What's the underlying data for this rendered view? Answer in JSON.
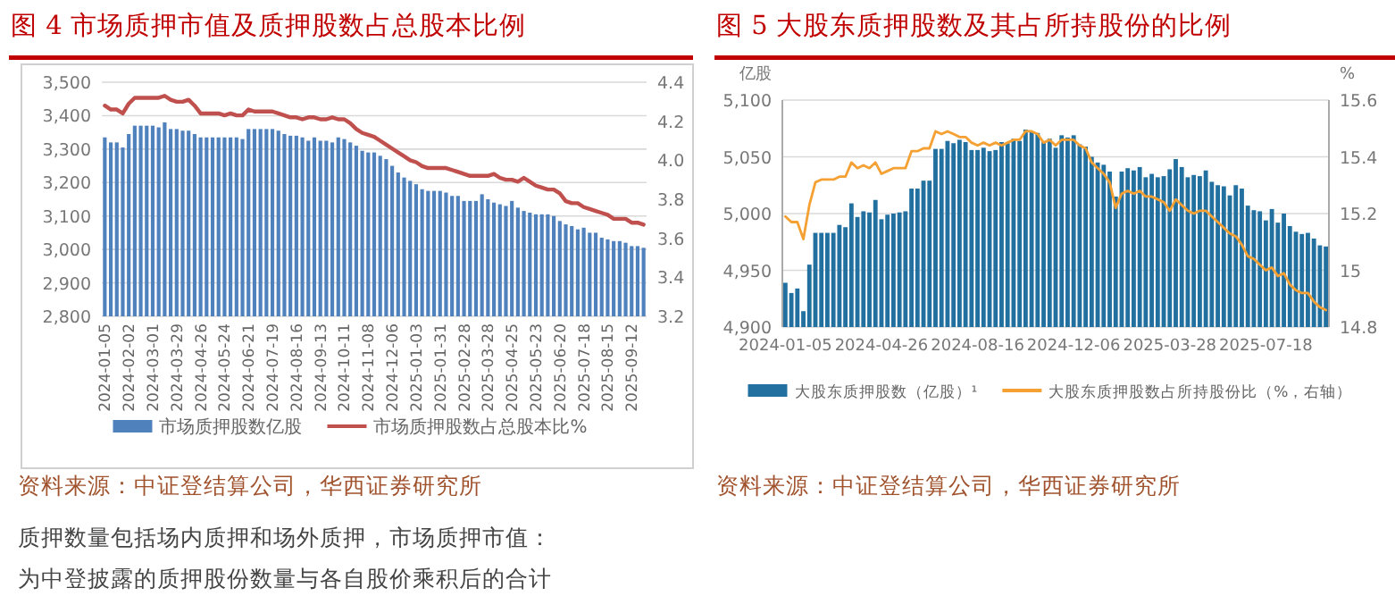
{
  "chart_data": [
    {
      "type": "bar",
      "title": "图 4   市场质押市值及质押股数占总股本比例",
      "categories": [
        "2024-01-05",
        null,
        null,
        null,
        "2024-02-02",
        null,
        null,
        null,
        "2024-03-01",
        null,
        null,
        null,
        "2024-03-29",
        null,
        null,
        null,
        "2024-04-26",
        null,
        null,
        null,
        "2024-05-24",
        null,
        null,
        null,
        "2024-06-21",
        null,
        null,
        null,
        "2024-07-19",
        null,
        null,
        null,
        "2024-08-16",
        null,
        null,
        null,
        "2024-09-13",
        null,
        null,
        null,
        "2024-10-11",
        null,
        null,
        null,
        "2024-11-08",
        null,
        null,
        null,
        "2024-12-06",
        null,
        null,
        null,
        "2025-01-03",
        null,
        null,
        null,
        "2025-01-31",
        null,
        null,
        null,
        "2025-02-28",
        null,
        null,
        null,
        "2025-03-28",
        null,
        null,
        null,
        "2025-04-25",
        null,
        null,
        null,
        "2025-05-23",
        null,
        null,
        null,
        "2025-06-20",
        null,
        null,
        null,
        "2025-07-18",
        null,
        null,
        null,
        "2025-08-15",
        null,
        null,
        null,
        "2025-09-12",
        null,
        null
      ],
      "series": [
        {
          "name": "市场质押股数亿股",
          "color": "#4f81bd",
          "values": [
            3335,
            3320,
            3320,
            3305,
            3345,
            3370,
            3370,
            3370,
            3370,
            3365,
            3380,
            3360,
            3360,
            3355,
            3355,
            3345,
            3335,
            3335,
            3335,
            3335,
            3335,
            3335,
            3335,
            3330,
            3360,
            3360,
            3360,
            3360,
            3360,
            3355,
            3345,
            3340,
            3340,
            3335,
            3325,
            3335,
            3325,
            3325,
            3320,
            3335,
            3330,
            3320,
            3310,
            3295,
            3290,
            3290,
            3280,
            3270,
            3250,
            3230,
            3215,
            3205,
            3195,
            3180,
            3175,
            3175,
            3175,
            3170,
            3160,
            3160,
            3145,
            3145,
            3145,
            3165,
            3150,
            3140,
            3135,
            3130,
            3145,
            3125,
            3115,
            3110,
            3105,
            3105,
            3105,
            3100,
            3085,
            3075,
            3070,
            3060,
            3065,
            3050,
            3050,
            3035,
            3030,
            3025,
            3025,
            3020,
            3010,
            3010,
            3005
          ]
        },
        {
          "name": "市场质押股数占总股本比%",
          "type": "line",
          "axis": "y2",
          "color": "#c0504d",
          "values": [
            4.28,
            4.26,
            4.26,
            4.24,
            4.29,
            4.32,
            4.32,
            4.32,
            4.32,
            4.32,
            4.33,
            4.31,
            4.3,
            4.3,
            4.31,
            4.28,
            4.24,
            4.24,
            4.24,
            4.24,
            4.23,
            4.24,
            4.23,
            4.23,
            4.26,
            4.25,
            4.25,
            4.25,
            4.25,
            4.24,
            4.23,
            4.22,
            4.22,
            4.21,
            4.22,
            4.22,
            4.21,
            4.21,
            4.22,
            4.21,
            4.21,
            4.19,
            4.16,
            4.14,
            4.13,
            4.12,
            4.1,
            4.08,
            4.06,
            4.04,
            4.02,
            4.0,
            3.99,
            3.97,
            3.96,
            3.96,
            3.96,
            3.96,
            3.95,
            3.94,
            3.93,
            3.92,
            3.92,
            3.92,
            3.92,
            3.93,
            3.91,
            3.9,
            3.9,
            3.89,
            3.91,
            3.89,
            3.87,
            3.86,
            3.85,
            3.85,
            3.83,
            3.79,
            3.78,
            3.78,
            3.76,
            3.75,
            3.74,
            3.73,
            3.72,
            3.7,
            3.7,
            3.7,
            3.68,
            3.68,
            3.67
          ]
        }
      ],
      "ylim": [
        2800,
        3500
      ],
      "yticks": [
        {
          "value": 2800,
          "label": "2,800"
        },
        {
          "value": 2900,
          "label": "2,900"
        },
        {
          "value": 3000,
          "label": "3,000"
        },
        {
          "value": 3100,
          "label": "3,100"
        },
        {
          "value": 3200,
          "label": "3,200"
        },
        {
          "value": 3300,
          "label": "3,300"
        },
        {
          "value": 3400,
          "label": "3,400"
        },
        {
          "value": 3500,
          "label": "3,500"
        }
      ],
      "y2lim": [
        3.2,
        4.4
      ],
      "y2ticks": [
        {
          "value": 3.2,
          "label": "3.2"
        },
        {
          "value": 3.4,
          "label": "3.4"
        },
        {
          "value": 3.6,
          "label": "3.6"
        },
        {
          "value": 3.8,
          "label": "3.8"
        },
        {
          "value": 4.0,
          "label": "4.0"
        },
        {
          "value": 4.2,
          "label": "4.2"
        },
        {
          "value": 4.4,
          "label": "4.4"
        }
      ],
      "grid": "y",
      "legend": "bottom",
      "annotations": [
        "资料来源：中证登结算公司，华西证券研究所",
        "质押数量包括场内质押和场外质押，市场质押市值：",
        "为中登披露的质押股份数量与各自股价乘积后的合计"
      ]
    },
    {
      "type": "bar",
      "title": "图 5   大股东质押股数及其占所持股份的比例",
      "ylabel": "亿股",
      "y2label": "%",
      "categories": [
        "2024-01-05",
        null,
        null,
        null,
        null,
        null,
        null,
        null,
        null,
        null,
        null,
        null,
        null,
        null,
        null,
        null,
        "2024-04-26",
        null,
        null,
        null,
        null,
        null,
        null,
        null,
        null,
        null,
        null,
        null,
        null,
        null,
        null,
        null,
        "2024-08-16",
        null,
        null,
        null,
        null,
        null,
        null,
        null,
        null,
        null,
        null,
        null,
        null,
        null,
        null,
        null,
        "2024-12-06",
        null,
        null,
        null,
        null,
        null,
        null,
        null,
        null,
        null,
        null,
        null,
        null,
        null,
        null,
        null,
        "2025-03-28",
        null,
        null,
        null,
        null,
        null,
        null,
        null,
        null,
        null,
        null,
        null,
        null,
        null,
        null,
        null,
        "2025-07-18",
        null,
        null,
        null,
        null,
        null,
        null,
        null,
        null,
        null,
        null
      ],
      "series": [
        {
          "name": "大股东质押股数（亿股）¹",
          "color": "#21709f",
          "values": [
            4939,
            4930,
            4934,
            4914,
            4955,
            4983,
            4983,
            4983,
            4983,
            4990,
            4988,
            5009,
            4997,
            5002,
            5001,
            5012,
            4995,
            4999,
            5000,
            5001,
            5002,
            5022,
            5022,
            5029,
            5029,
            5057,
            5057,
            5064,
            5062,
            5065,
            5063,
            5056,
            5056,
            5058,
            5055,
            5056,
            5063,
            5062,
            5066,
            5064,
            5074,
            5072,
            5071,
            5063,
            5066,
            5058,
            5069,
            5067,
            5069,
            5061,
            5059,
            5050,
            5045,
            5043,
            5037,
            5015,
            5037,
            5040,
            5038,
            5041,
            5032,
            5035,
            5032,
            5033,
            5039,
            5048,
            5041,
            5032,
            5034,
            5033,
            5038,
            5028,
            5025,
            5024,
            5016,
            5025,
            5022,
            5007,
            5003,
            5002,
            4994,
            5004,
            4992,
            5000,
            4989,
            4984,
            4982,
            4983,
            4978,
            4972,
            4971
          ]
        },
        {
          "name": "大股东质押股数占所持股份比（%，右轴）",
          "type": "line",
          "axis": "y2",
          "color": "#f5a033",
          "values": [
            15.19,
            15.17,
            15.17,
            15.11,
            15.23,
            15.31,
            15.32,
            15.32,
            15.32,
            15.33,
            15.33,
            15.38,
            15.36,
            15.37,
            15.36,
            15.38,
            15.34,
            15.35,
            15.36,
            15.36,
            15.36,
            15.42,
            15.42,
            15.43,
            15.43,
            15.49,
            15.48,
            15.49,
            15.48,
            15.47,
            15.47,
            15.45,
            15.44,
            15.45,
            15.44,
            15.45,
            15.44,
            15.45,
            15.46,
            15.46,
            15.49,
            15.49,
            15.48,
            15.45,
            15.46,
            15.44,
            15.46,
            15.46,
            15.46,
            15.44,
            15.43,
            15.38,
            15.36,
            15.34,
            15.31,
            15.22,
            15.27,
            15.28,
            15.27,
            15.28,
            15.26,
            15.26,
            15.25,
            15.24,
            15.21,
            15.25,
            15.23,
            15.21,
            15.2,
            15.21,
            15.21,
            15.19,
            15.17,
            15.15,
            15.13,
            15.12,
            15.09,
            15.05,
            15.04,
            15.02,
            15.0,
            15.01,
            14.98,
            14.99,
            14.95,
            14.93,
            14.92,
            14.92,
            14.89,
            14.87,
            14.86
          ]
        }
      ],
      "ylim": [
        4900,
        5100
      ],
      "yticks": [
        {
          "value": 4900,
          "label": "4,900"
        },
        {
          "value": 4950,
          "label": "4,950"
        },
        {
          "value": 5000,
          "label": "5,000"
        },
        {
          "value": 5050,
          "label": "5,050"
        },
        {
          "value": 5100,
          "label": "5,100"
        }
      ],
      "y2lim": [
        14.8,
        15.6
      ],
      "y2ticks": [
        14.8,
        15,
        15.2,
        15.4,
        15.6
      ],
      "grid": "y",
      "legend": "bottom",
      "annotations": [
        "资料来源：中证登结算公司，华西证券研究所"
      ]
    }
  ]
}
